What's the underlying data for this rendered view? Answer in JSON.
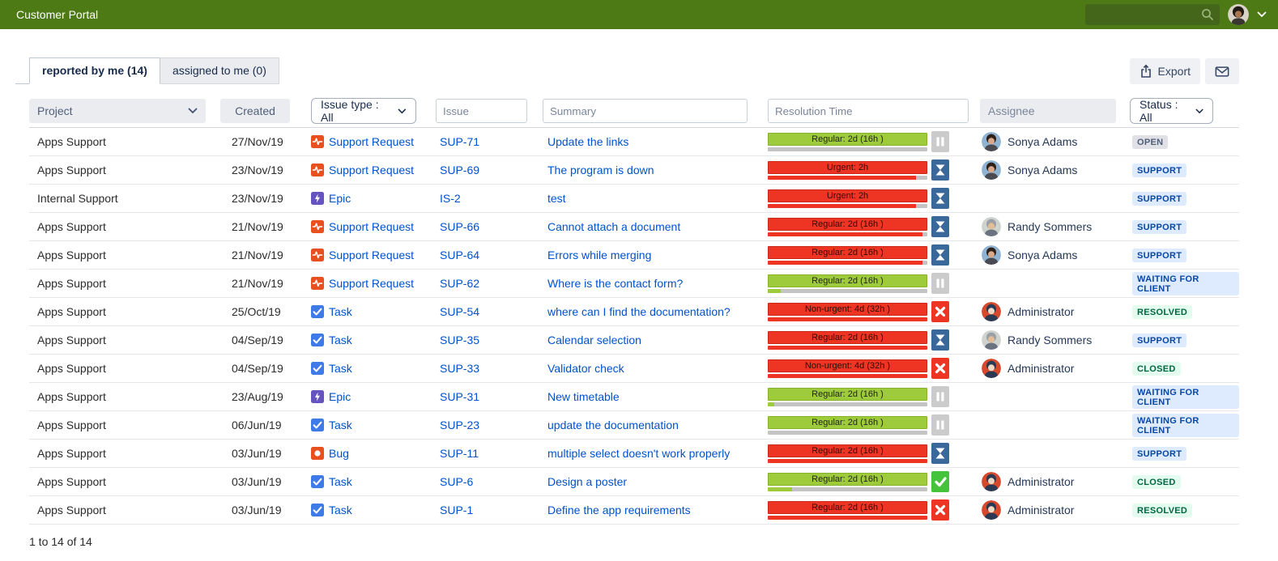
{
  "header": {
    "title": "Customer Portal",
    "search_placeholder": "",
    "bar_color": "#4E7A16",
    "search_box_color": "#44661A"
  },
  "tabs": [
    {
      "label": "reported by me (14)",
      "active": true
    },
    {
      "label": "assigned to me (0)",
      "active": false
    }
  ],
  "toolbar": {
    "export_label": "Export",
    "mail_icon": "envelope-icon",
    "export_icon": "upload-icon"
  },
  "filters": {
    "project_label": "Project",
    "created_label": "Created",
    "issue_type_label": "Issue type : All",
    "issue_placeholder": "Issue",
    "summary_placeholder": "Summary",
    "resolution_placeholder": "Resolution Time",
    "assignee_placeholder": "Assignee",
    "status_label": "Status : All"
  },
  "colors": {
    "link": "#0052CC",
    "sla_ok": "#9DCB3B",
    "sla_breach": "#EE3524",
    "badge_blue_bg": "#DEEBFF",
    "badge_blue_text": "#0747A6",
    "badge_green_bg": "#E3FCEF",
    "badge_green_text": "#006644",
    "badge_gray_bg": "#DFE1E6",
    "badge_gray_text": "#505F79",
    "icon_hourglass_bg": "#3B689B",
    "icon_pause_bg": "#cbcbcb",
    "icon_x_bg": "#EE3524",
    "icon_check_bg": "#46C33D"
  },
  "rows": [
    {
      "project": "Apps Support",
      "created": "27/Nov/19",
      "type": {
        "label": "Support Request",
        "icon": "support"
      },
      "issue": "SUP-71",
      "summary": "Update the links",
      "sla": {
        "label": "Regular: 2d (16h )",
        "level": "ok",
        "progress": 0,
        "icon": "pause"
      },
      "assignee": {
        "name": "Sonya Adams",
        "avatar": "sonya"
      },
      "status": {
        "label": "OPEN",
        "tone": "gray"
      }
    },
    {
      "project": "Apps Support",
      "created": "23/Nov/19",
      "type": {
        "label": "Support Request",
        "icon": "support"
      },
      "issue": "SUP-69",
      "summary": "The program is down",
      "sla": {
        "label": "Urgent: 2h",
        "level": "breach",
        "progress": 93,
        "icon": "hourglass"
      },
      "assignee": {
        "name": "Sonya Adams",
        "avatar": "sonya"
      },
      "status": {
        "label": "SUPPORT",
        "tone": "blue"
      }
    },
    {
      "project": "Internal Support",
      "created": "23/Nov/19",
      "type": {
        "label": "Epic",
        "icon": "epic"
      },
      "issue": "IS-2",
      "summary": "test",
      "sla": {
        "label": "Urgent: 2h",
        "level": "breach",
        "progress": 93,
        "icon": "hourglass"
      },
      "assignee": null,
      "status": {
        "label": "SUPPORT",
        "tone": "blue"
      }
    },
    {
      "project": "Apps Support",
      "created": "21/Nov/19",
      "type": {
        "label": "Support Request",
        "icon": "support"
      },
      "issue": "SUP-66",
      "summary": "Cannot attach a document",
      "sla": {
        "label": "Regular: 2d (16h )",
        "level": "breach",
        "progress": 97,
        "icon": "hourglass"
      },
      "assignee": {
        "name": "Randy Sommers",
        "avatar": "randy"
      },
      "status": {
        "label": "SUPPORT",
        "tone": "blue"
      }
    },
    {
      "project": "Apps Support",
      "created": "21/Nov/19",
      "type": {
        "label": "Support Request",
        "icon": "support"
      },
      "issue": "SUP-64",
      "summary": "Errors while merging",
      "sla": {
        "label": "Regular: 2d (16h )",
        "level": "breach",
        "progress": 97,
        "icon": "hourglass"
      },
      "assignee": {
        "name": "Sonya Adams",
        "avatar": "sonya"
      },
      "status": {
        "label": "SUPPORT",
        "tone": "blue"
      }
    },
    {
      "project": "Apps Support",
      "created": "21/Nov/19",
      "type": {
        "label": "Support Request",
        "icon": "support"
      },
      "issue": "SUP-62",
      "summary": "Where is the contact form?",
      "sla": {
        "label": "Regular: 2d (16h )",
        "level": "ok",
        "progress": 8,
        "icon": "pause"
      },
      "assignee": null,
      "status": {
        "label": "WAITING FOR CLIENT",
        "tone": "blue"
      }
    },
    {
      "project": "Apps Support",
      "created": "25/Oct/19",
      "type": {
        "label": "Task",
        "icon": "task"
      },
      "issue": "SUP-54",
      "summary": "where can I find the documentation?",
      "sla": {
        "label": "Non-urgent: 4d (32h )",
        "level": "breach",
        "progress": 100,
        "icon": "x"
      },
      "assignee": {
        "name": "Administrator",
        "avatar": "admin"
      },
      "status": {
        "label": "RESOLVED",
        "tone": "green"
      }
    },
    {
      "project": "Apps Support",
      "created": "04/Sep/19",
      "type": {
        "label": "Task",
        "icon": "task"
      },
      "issue": "SUP-35",
      "summary": "Calendar selection",
      "sla": {
        "label": "Regular: 2d (16h )",
        "level": "breach",
        "progress": 100,
        "icon": "hourglass"
      },
      "assignee": {
        "name": "Randy Sommers",
        "avatar": "randy"
      },
      "status": {
        "label": "SUPPORT",
        "tone": "blue"
      }
    },
    {
      "project": "Apps Support",
      "created": "04/Sep/19",
      "type": {
        "label": "Task",
        "icon": "task"
      },
      "issue": "SUP-33",
      "summary": "Validator check",
      "sla": {
        "label": "Non-urgent: 4d (32h )",
        "level": "breach",
        "progress": 100,
        "icon": "x"
      },
      "assignee": {
        "name": "Administrator",
        "avatar": "admin"
      },
      "status": {
        "label": "CLOSED",
        "tone": "green"
      }
    },
    {
      "project": "Apps Support",
      "created": "23/Aug/19",
      "type": {
        "label": "Epic",
        "icon": "epic"
      },
      "issue": "SUP-31",
      "summary": "New timetable",
      "sla": {
        "label": "Regular: 2d (16h )",
        "level": "ok",
        "progress": 4,
        "icon": "pause"
      },
      "assignee": null,
      "status": {
        "label": "WAITING FOR CLIENT",
        "tone": "blue"
      }
    },
    {
      "project": "Apps Support",
      "created": "06/Jun/19",
      "type": {
        "label": "Task",
        "icon": "task"
      },
      "issue": "SUP-23",
      "summary": "update the documentation",
      "sla": {
        "label": "Regular: 2d (16h )",
        "level": "ok",
        "progress": 0,
        "icon": "pause"
      },
      "assignee": null,
      "status": {
        "label": "WAITING FOR CLIENT",
        "tone": "blue"
      }
    },
    {
      "project": "Apps Support",
      "created": "03/Jun/19",
      "type": {
        "label": "Bug",
        "icon": "bug"
      },
      "issue": "SUP-11",
      "summary": "multiple select doesn't work properly",
      "sla": {
        "label": "Regular: 2d (16h )",
        "level": "breach",
        "progress": 100,
        "icon": "hourglass"
      },
      "assignee": null,
      "status": {
        "label": "SUPPORT",
        "tone": "blue"
      }
    },
    {
      "project": "Apps Support",
      "created": "03/Jun/19",
      "type": {
        "label": "Task",
        "icon": "task"
      },
      "issue": "SUP-6",
      "summary": "Design a poster",
      "sla": {
        "label": "Regular: 2d (16h )",
        "level": "ok",
        "progress": 15,
        "icon": "check"
      },
      "assignee": {
        "name": "Administrator",
        "avatar": "admin"
      },
      "status": {
        "label": "CLOSED",
        "tone": "green"
      }
    },
    {
      "project": "Apps Support",
      "created": "03/Jun/19",
      "type": {
        "label": "Task",
        "icon": "task"
      },
      "issue": "SUP-1",
      "summary": "Define the app requirements",
      "sla": {
        "label": "Regular: 2d (16h )",
        "level": "breach",
        "progress": 100,
        "icon": "x"
      },
      "assignee": {
        "name": "Administrator",
        "avatar": "admin"
      },
      "status": {
        "label": "RESOLVED",
        "tone": "green"
      }
    }
  ],
  "footer": {
    "count_text": "1 to 14 of 14"
  }
}
